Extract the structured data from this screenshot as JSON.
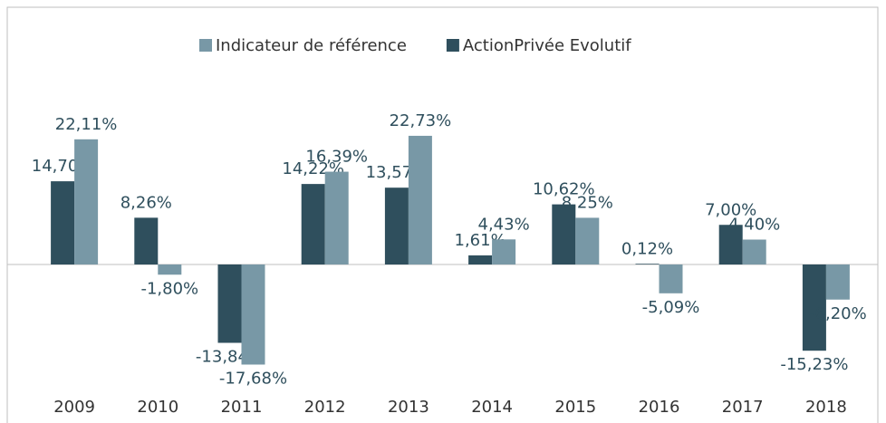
{
  "chart_data": {
    "type": "bar",
    "categories": [
      "2009",
      "2010",
      "2011",
      "2012",
      "2013",
      "2014",
      "2015",
      "2016",
      "2017",
      "2018"
    ],
    "series": [
      {
        "name": "ActionPrivée Evolutif",
        "color": "#2f4f5d",
        "values": [
          14.7,
          8.26,
          -13.84,
          14.22,
          13.57,
          1.61,
          10.62,
          0.12,
          7.0,
          -15.23
        ],
        "value_labels": [
          "14,70%",
          "8,26%",
          "-13,84%",
          "14,22%",
          "13,57%",
          "1,61%",
          "10,62%",
          "0,12%",
          "7,00%",
          "-15,23%"
        ]
      },
      {
        "name": "Indicateur de référence",
        "color": "#7898a6",
        "values": [
          22.11,
          -1.8,
          -17.68,
          16.39,
          22.73,
          4.43,
          8.25,
          -5.09,
          4.4,
          -6.2
        ],
        "value_labels": [
          "22,11%",
          "-1,80%",
          "-17,68%",
          "16,39%",
          "22,73%",
          "4,43%",
          "8,25%",
          "-5,09%",
          "4,40%",
          "-6,20%"
        ]
      }
    ],
    "ylim": [
      -25,
      30
    ],
    "legend": "top"
  }
}
